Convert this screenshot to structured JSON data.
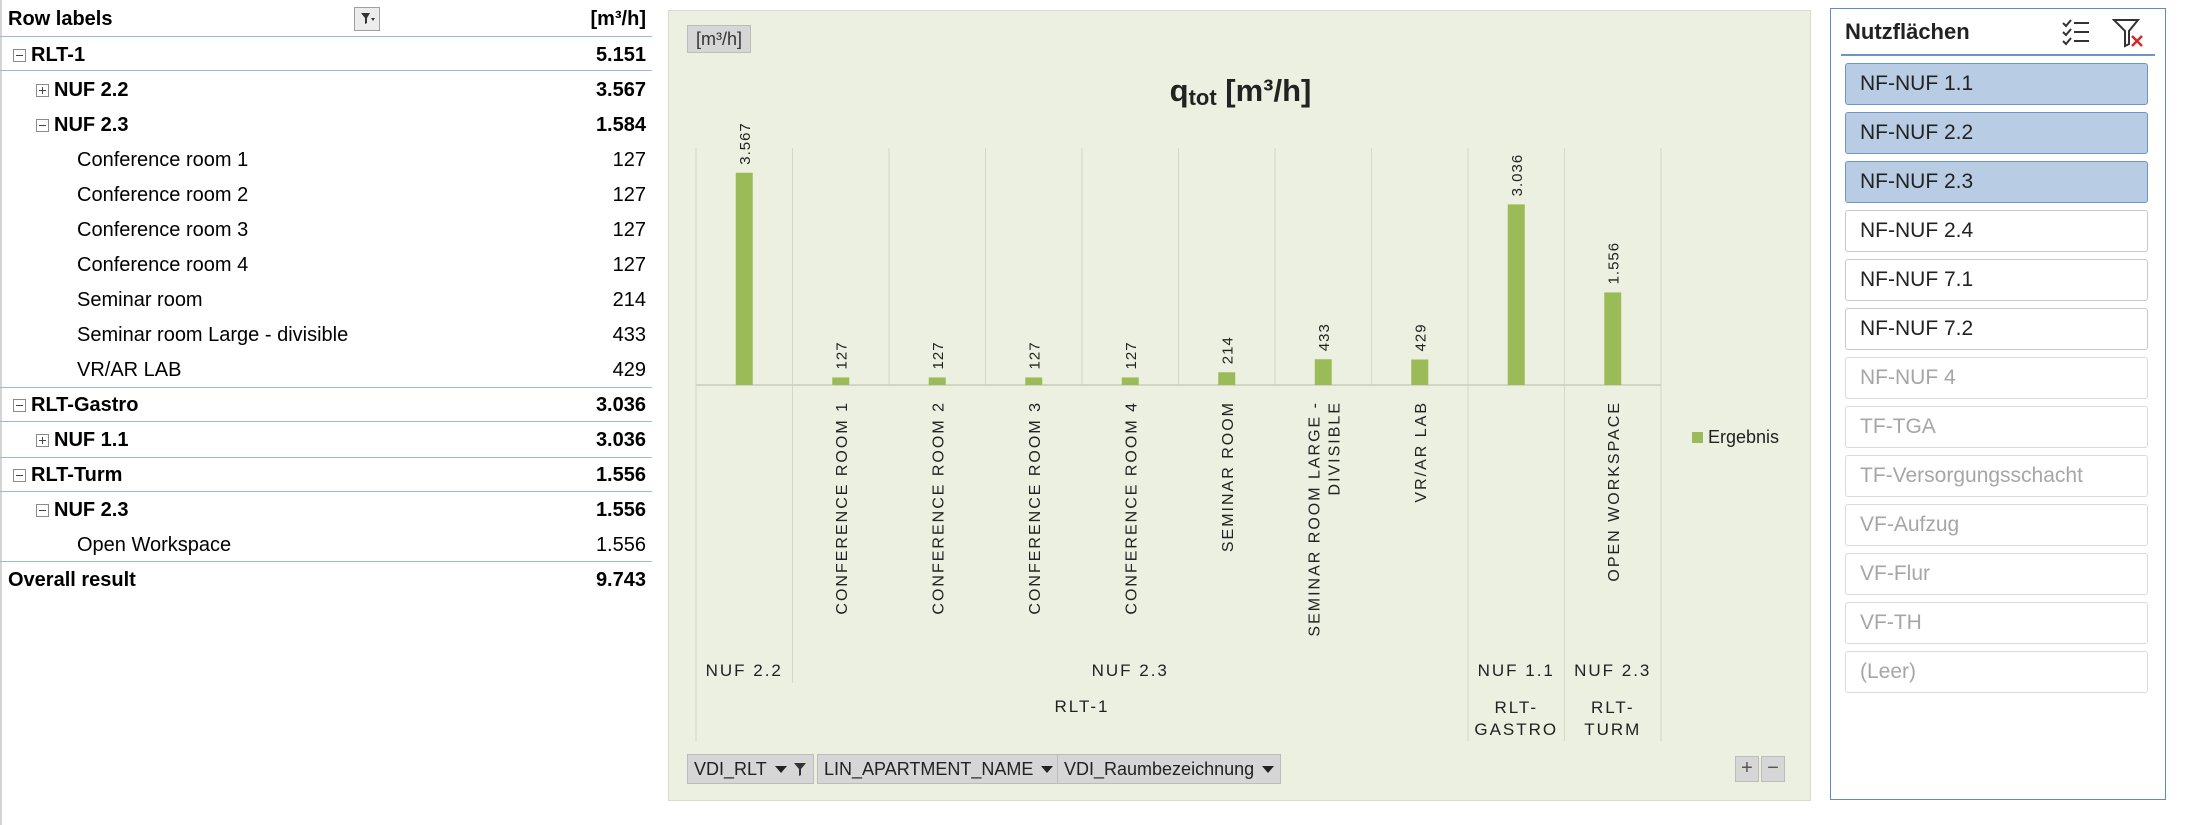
{
  "pivot": {
    "header_label": "Row labels",
    "header_value": "[m³/h]",
    "rows": [
      {
        "label": "RLT-1",
        "value": "5.151"
      },
      {
        "label": "NUF 2.2",
        "value": "3.567"
      },
      {
        "label": "NUF 2.3",
        "value": "1.584"
      },
      {
        "label": "Conference room 1",
        "value": "127"
      },
      {
        "label": "Conference room 2",
        "value": "127"
      },
      {
        "label": "Conference room 3",
        "value": "127"
      },
      {
        "label": "Conference room 4",
        "value": "127"
      },
      {
        "label": "Seminar room",
        "value": "214"
      },
      {
        "label": "Seminar room Large - divisible",
        "value": "433"
      },
      {
        "label": "VR/AR LAB",
        "value": "429"
      },
      {
        "label": "RLT-Gastro",
        "value": "3.036"
      },
      {
        "label": "NUF 1.1",
        "value": "3.036"
      },
      {
        "label": "RLT-Turm",
        "value": "1.556"
      },
      {
        "label": "NUF 2.3",
        "value": "1.556"
      },
      {
        "label": "Open Workspace",
        "value": "1.556"
      },
      {
        "label": "Overall result",
        "value": "9.743"
      }
    ]
  },
  "chart": {
    "unit_tag": "[m³/h]",
    "title_main": "q",
    "title_sub": "tot",
    "title_unit": "[m³/h]",
    "legend_label": "Ergebnis",
    "field_buttons": [
      "VDI_RLT",
      "LIN_APARTMENT_NAME",
      "VDI_Raumbezeichnung"
    ],
    "zoom_in": "+",
    "zoom_out": "−",
    "bar_color": "#9bbb59"
  },
  "chart_data": {
    "type": "bar",
    "categories": [
      "",
      "CONFERENCE ROOM 1",
      "CONFERENCE ROOM 2",
      "CONFERENCE ROOM 3",
      "CONFERENCE ROOM 4",
      "SEMINAR ROOM",
      "SEMINAR ROOM LARGE - DIVISIBLE",
      "VR/AR LAB",
      "",
      "OPEN WORKSPACE"
    ],
    "level2": [
      {
        "label": "NUF 2.2",
        "from": 0,
        "to": 0
      },
      {
        "label": "NUF 2.3",
        "from": 1,
        "to": 7
      },
      {
        "label": "NUF 1.1",
        "from": 8,
        "to": 8
      },
      {
        "label": "NUF 2.3",
        "from": 9,
        "to": 9
      }
    ],
    "level3": [
      {
        "label": "RLT-1",
        "from": 0,
        "to": 7
      },
      {
        "label": "RLT-GASTRO",
        "from": 8,
        "to": 8
      },
      {
        "label": "RLT-TURM",
        "from": 9,
        "to": 9
      }
    ],
    "series": [
      {
        "name": "Ergebnis",
        "values": [
          3567,
          127,
          127,
          127,
          127,
          214,
          433,
          429,
          3036,
          1556
        ]
      }
    ],
    "value_labels": [
      "3.567",
      "127",
      "127",
      "127",
      "127",
      "214",
      "433",
      "429",
      "3.036",
      "1.556"
    ],
    "ylim": [
      0,
      4000
    ],
    "grid": false,
    "legend": "right"
  },
  "slicer": {
    "title": "Nutzflächen",
    "items": [
      {
        "label": "NF-NUF 1.1",
        "state": "selected"
      },
      {
        "label": "NF-NUF 2.2",
        "state": "selected"
      },
      {
        "label": "NF-NUF 2.3",
        "state": "selected"
      },
      {
        "label": "NF-NUF 2.4",
        "state": "normal"
      },
      {
        "label": "NF-NUF 7.1",
        "state": "normal"
      },
      {
        "label": "NF-NUF 7.2",
        "state": "normal"
      },
      {
        "label": "NF-NUF 4",
        "state": "nodata"
      },
      {
        "label": "TF-TGA",
        "state": "nodata"
      },
      {
        "label": "TF-Versorgungsschacht",
        "state": "nodata"
      },
      {
        "label": "VF-Aufzug",
        "state": "nodata"
      },
      {
        "label": "VF-Flur",
        "state": "nodata"
      },
      {
        "label": "VF-TH",
        "state": "nodata"
      },
      {
        "label": "(Leer)",
        "state": "nodata"
      }
    ]
  }
}
